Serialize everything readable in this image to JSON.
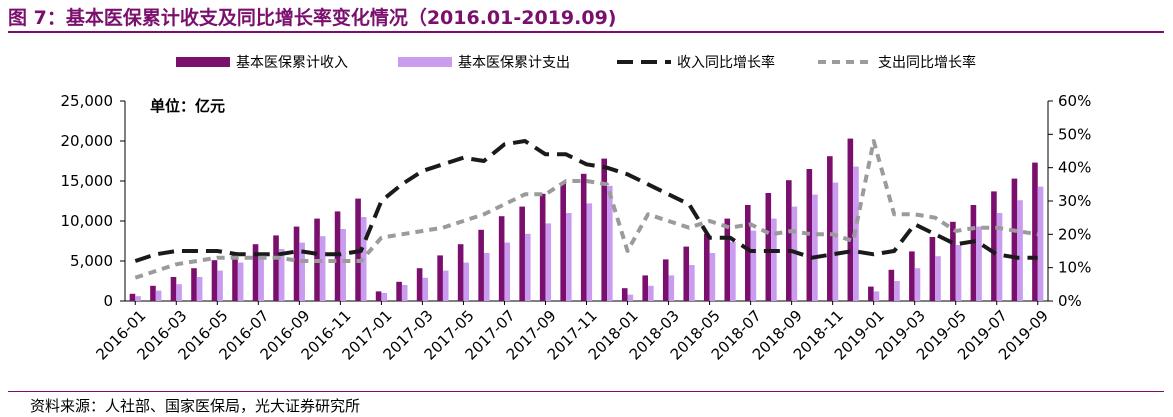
{
  "title": "图 7：基本医保累计收支及同比增长率变化情况（2016.01-2019.09)",
  "source": "资料来源：人社部、国家医保局，光大证券研究所",
  "colors": {
    "accent": "#7b0f6d",
    "income": "#7b0f6d",
    "expense": "#c99cf0",
    "income_growth": "#1a1a1a",
    "expense_growth": "#9b9b9b"
  },
  "chart_data": {
    "type": "bar",
    "unit_label": "单位：亿元",
    "x": [
      "2016-01",
      "2016-02",
      "2016-03",
      "2016-04",
      "2016-05",
      "2016-06",
      "2016-07",
      "2016-08",
      "2016-09",
      "2016-10",
      "2016-11",
      "2016-12",
      "2017-01",
      "2017-02",
      "2017-03",
      "2017-04",
      "2017-05",
      "2017-06",
      "2017-07",
      "2017-08",
      "2017-09",
      "2017-10",
      "2017-11",
      "2017-12",
      "2018-01",
      "2018-02",
      "2018-03",
      "2018-04",
      "2018-05",
      "2018-06",
      "2018-07",
      "2018-08",
      "2018-09",
      "2018-10",
      "2018-11",
      "2018-12",
      "2019-01",
      "2019-02",
      "2019-03",
      "2019-04",
      "2019-05",
      "2019-06",
      "2019-07",
      "2019-08",
      "2019-09"
    ],
    "x_tick_labels": [
      "2016-01",
      "2016-03",
      "2016-05",
      "2016-07",
      "2016-09",
      "2016-11",
      "2017-01",
      "2017-03",
      "2017-05",
      "2017-07",
      "2017-09",
      "2017-11",
      "2018-01",
      "2018-03",
      "2018-05",
      "2018-07",
      "2018-09",
      "2018-11",
      "2019-01",
      "2019-03",
      "2019-05",
      "2019-07",
      "2019-09"
    ],
    "y_left": {
      "min": 0,
      "max": 25000,
      "ticks": [
        "0",
        "5,000",
        "10,000",
        "15,000",
        "20,000",
        "25,000"
      ],
      "tick_values": [
        0,
        5000,
        10000,
        15000,
        20000,
        25000
      ]
    },
    "y_right": {
      "min": 0,
      "max": 60,
      "ticks": [
        "0%",
        "10%",
        "20%",
        "30%",
        "40%",
        "50%",
        "60%"
      ],
      "tick_values": [
        0,
        10,
        20,
        30,
        40,
        50,
        60
      ]
    },
    "series": [
      {
        "name": "基本医保累计收入",
        "kind": "bar",
        "axis": "left",
        "color": "#7b0f6d",
        "values": [
          900,
          1900,
          3000,
          4100,
          5100,
          6100,
          7100,
          8200,
          9300,
          10300,
          11200,
          12800,
          1200,
          2400,
          4100,
          5700,
          7100,
          8900,
          10600,
          11800,
          13400,
          14700,
          15900,
          17800,
          1600,
          3200,
          5200,
          6800,
          8400,
          10300,
          12000,
          13500,
          15100,
          16500,
          18100,
          20300,
          1800,
          3900,
          6200,
          8000,
          9900,
          12000,
          13700,
          15300,
          17300
        ]
      },
      {
        "name": "基本医保累计支出",
        "kind": "bar",
        "axis": "left",
        "color": "#c99cf0",
        "values": [
          600,
          1300,
          2100,
          3000,
          3800,
          4800,
          5700,
          6500,
          7300,
          8100,
          9000,
          10500,
          1000,
          2000,
          2900,
          3800,
          4800,
          6000,
          7300,
          8400,
          9700,
          11000,
          12200,
          14400,
          800,
          1900,
          3200,
          4500,
          6000,
          7400,
          8800,
          10300,
          11800,
          13300,
          14800,
          16800,
          1200,
          2500,
          4100,
          5600,
          7000,
          9300,
          11000,
          12600,
          14300
        ]
      },
      {
        "name": "收入同比增长率",
        "kind": "line",
        "axis": "right",
        "dash": "long",
        "color": "#1a1a1a",
        "values": [
          12,
          14,
          15,
          15,
          15,
          14,
          14,
          14,
          15,
          14,
          14,
          15,
          30,
          35,
          39,
          41,
          43,
          42,
          47,
          48,
          44,
          44,
          41,
          40,
          38,
          35,
          32,
          29,
          19,
          19,
          15,
          15,
          15,
          13,
          14,
          15,
          14,
          15,
          23,
          20,
          17,
          18,
          14,
          13,
          13
        ]
      },
      {
        "name": "支出同比增长率",
        "kind": "line",
        "axis": "right",
        "dash": "short",
        "color": "#9b9b9b",
        "values": [
          7,
          9,
          11,
          12,
          13,
          13,
          13,
          13,
          12,
          12,
          12,
          12,
          19,
          20,
          21,
          22,
          24,
          26,
          29,
          32,
          32,
          36,
          36,
          35,
          15,
          26,
          24,
          22,
          24,
          22,
          23,
          20,
          21,
          20,
          20,
          18,
          48,
          26,
          26,
          25,
          21,
          22,
          22,
          21,
          20
        ]
      }
    ]
  }
}
